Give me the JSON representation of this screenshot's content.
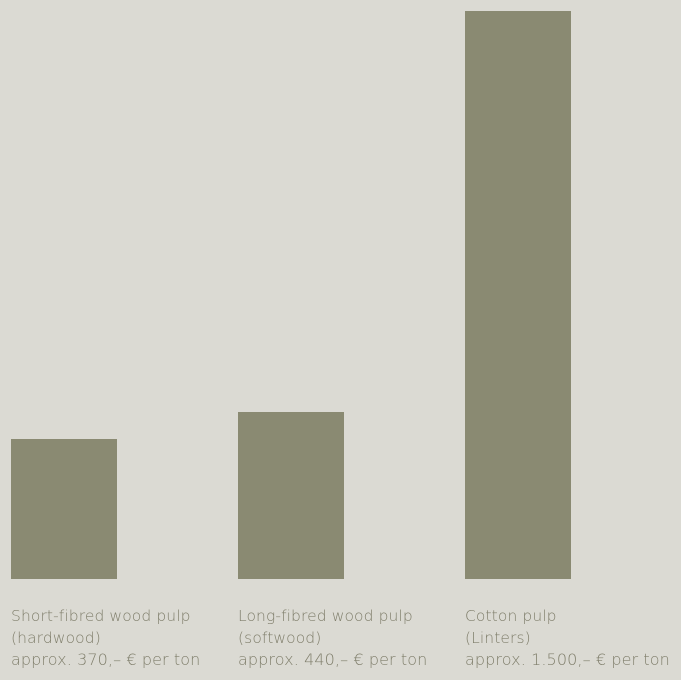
{
  "chart_data": {
    "type": "bar",
    "categories": [
      {
        "name": "Short-fibred wood pulp",
        "sub": "(hardwood)",
        "price_text": "approx. 370,– € per ton"
      },
      {
        "name": "Long-fibred wood pulp",
        "sub": "(softwood)",
        "price_text": "approx. 440,– € per ton"
      },
      {
        "name": "Cotton pulp",
        "sub": "(Linters)",
        "price_text": "approx. 1.500,– € per ton"
      }
    ],
    "values": [
      370,
      440,
      1500
    ],
    "unit": "€ per ton",
    "ylim": [
      0,
      1500
    ],
    "grid": false,
    "bar_color": "#8a8a72",
    "label_color": "#807f6c",
    "background_color": "#dbdad3"
  }
}
